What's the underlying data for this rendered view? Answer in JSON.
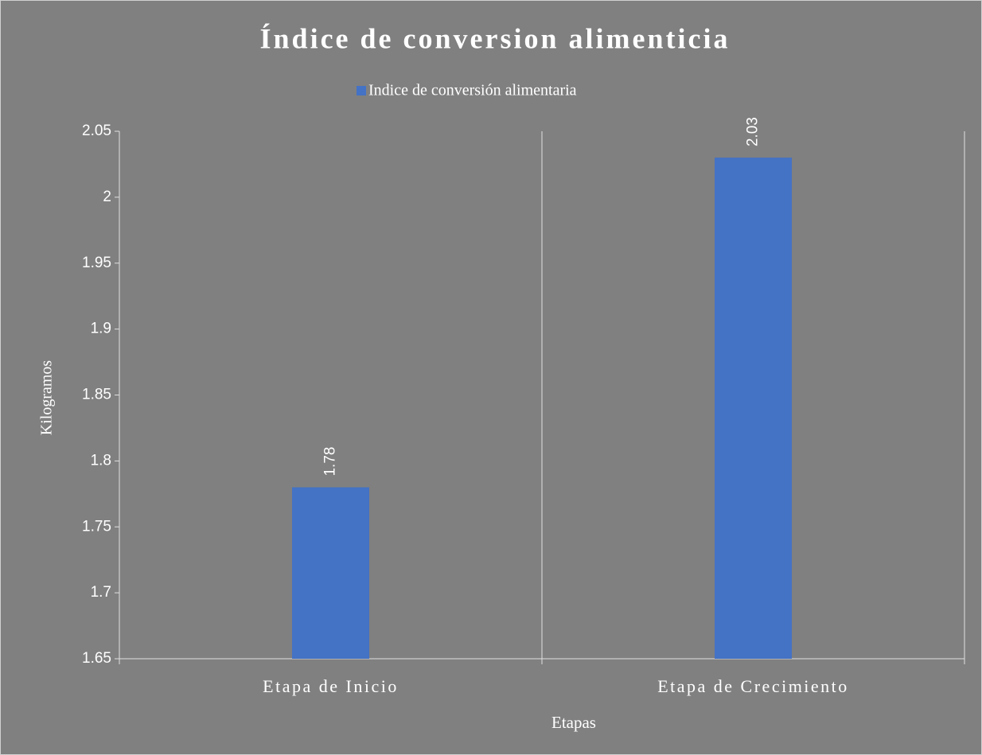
{
  "chart_data": {
    "type": "bar",
    "title": "Índice de conversion alimenticia",
    "categories": [
      "Etapa de Inicio",
      "Etapa de Crecimiento"
    ],
    "series": [
      {
        "name": "Indice de conversión alimentaria",
        "color": "#4472c4",
        "values": [
          1.78,
          2.03
        ]
      }
    ],
    "x_label": "Etapas",
    "y_label": "Kilogramos",
    "ylim": [
      1.65,
      2.05
    ],
    "yticks": [
      1.65,
      1.7,
      1.75,
      1.8,
      1.85,
      1.9,
      1.95,
      2,
      2.05
    ],
    "legend": "top",
    "data_labels": true
  }
}
